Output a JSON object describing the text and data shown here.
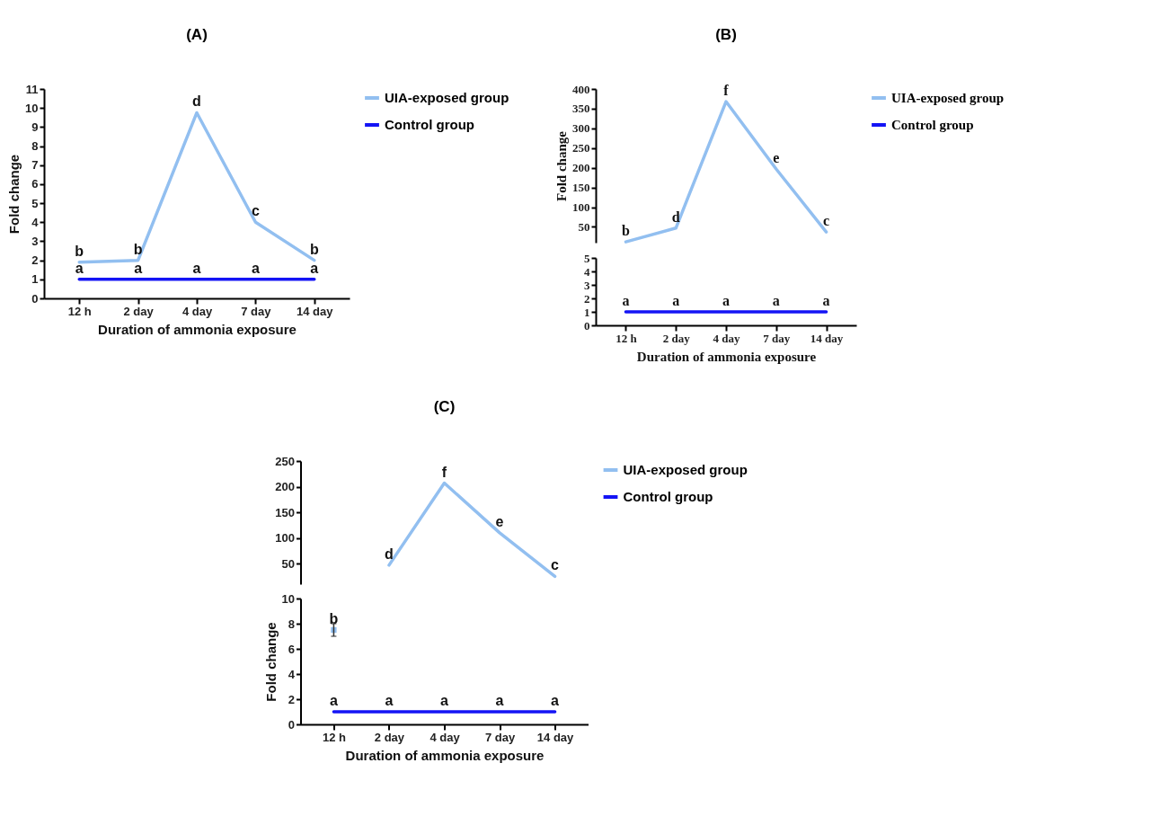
{
  "chart_data": [
    {
      "type": "line",
      "title": "(A)",
      "xlabel": "Duration of ammonia exposure",
      "ylabel": "Fold change",
      "categories": [
        "12 h",
        "2 day",
        "4 day",
        "7 day",
        "14 day"
      ],
      "ylim": [
        0,
        11
      ],
      "yticks": [
        0,
        1,
        2,
        3,
        4,
        5,
        6,
        7,
        8,
        9,
        10,
        11
      ],
      "legend": "right",
      "series": [
        {
          "name": "UIA-exposed group",
          "color": "#92bff0",
          "values": [
            1.9,
            2.0,
            9.75,
            4.0,
            2.0
          ]
        },
        {
          "name": "Control group",
          "color": "#1414f5",
          "values": [
            1,
            1,
            1,
            1,
            1
          ]
        }
      ],
      "annotations": [
        {
          "text": "b",
          "x": "12 h",
          "y": 1.9
        },
        {
          "text": "b",
          "x": "2 day",
          "y": 2.0
        },
        {
          "text": "d",
          "x": "4 day",
          "y": 9.75
        },
        {
          "text": "c",
          "x": "7 day",
          "y": 4.0
        },
        {
          "text": "b",
          "x": "14 day",
          "y": 2.0
        },
        {
          "text": "a",
          "x": "12 h",
          "y": 1
        },
        {
          "text": "a",
          "x": "2 day",
          "y": 1
        },
        {
          "text": "a",
          "x": "4 day",
          "y": 1
        },
        {
          "text": "a",
          "x": "7 day",
          "y": 1
        },
        {
          "text": "a",
          "x": "14 day",
          "y": 1
        }
      ]
    },
    {
      "type": "line",
      "title": "(B)",
      "ylabel": "Fold change",
      "categories": [
        "12 h",
        "2 day",
        "4 day",
        "7 day",
        "14 day"
      ],
      "ylim": [
        10,
        400
      ],
      "yticks": [
        50,
        100,
        150,
        200,
        250,
        300,
        350,
        400
      ],
      "legend": "right",
      "tick_labels": "y",
      "series": [
        {
          "name": "UIA-exposed group",
          "color": "#92bff0",
          "values": [
            12,
            47,
            368,
            197,
            37
          ]
        },
        {
          "name": "Control group",
          "color": "#1414f5",
          "values": [
            null,
            null,
            null,
            null,
            null
          ]
        }
      ],
      "annotations": [
        {
          "text": "b",
          "x": "12 h",
          "y": 12
        },
        {
          "text": "d",
          "x": "2 day",
          "y": 47
        },
        {
          "text": "f",
          "x": "4 day",
          "y": 368
        },
        {
          "text": "e",
          "x": "7 day",
          "y": 197
        },
        {
          "text": "c",
          "x": "14 day",
          "y": 37
        }
      ]
    },
    {
      "type": "line",
      "xlabel": "Duration of ammonia exposure",
      "categories": [
        "12 h",
        "2 day",
        "4 day",
        "7 day",
        "14 day"
      ],
      "ylim": [
        0,
        5
      ],
      "yticks": [
        0,
        1,
        2,
        3,
        4,
        5
      ],
      "series": [
        {
          "color": "#1414f5",
          "values": [
            1,
            1,
            1,
            1,
            1
          ]
        }
      ],
      "annotations": [
        {
          "text": "a",
          "x": "12 h",
          "y": 1
        },
        {
          "text": "a",
          "x": "2 day",
          "y": 1
        },
        {
          "text": "a",
          "x": "4 day",
          "y": 1
        },
        {
          "text": "a",
          "x": "7 day",
          "y": 1
        },
        {
          "text": "a",
          "x": "14 day",
          "y": 1
        }
      ]
    },
    {
      "type": "line",
      "title": "(C)",
      "categories": [
        "12 h",
        "2 day",
        "4 day",
        "7 day",
        "14 day"
      ],
      "ylim": [
        10,
        250
      ],
      "yticks": [
        50,
        100,
        150,
        200,
        250
      ],
      "legend": "right",
      "tick_labels": "y",
      "series": [
        {
          "name": "UIA-exposed group",
          "color": "#92bff0",
          "values": [
            null,
            47,
            207,
            110,
            25
          ]
        },
        {
          "name": "Control group",
          "color": "#1414f5",
          "values": [
            null,
            null,
            null,
            null,
            null
          ]
        }
      ],
      "annotations": [
        {
          "text": "d",
          "x": "2 day",
          "y": 47
        },
        {
          "text": "f",
          "x": "4 day",
          "y": 207
        },
        {
          "text": "e",
          "x": "7 day",
          "y": 110
        },
        {
          "text": "c",
          "x": "14 day",
          "y": 25
        }
      ]
    },
    {
      "type": "line",
      "xlabel": "Duration of ammonia exposure",
      "ylabel": "Fold change",
      "categories": [
        "12 h",
        "2 day",
        "4 day",
        "7 day",
        "14 day"
      ],
      "ylim": [
        0,
        10
      ],
      "yticks": [
        0,
        2,
        4,
        6,
        8,
        10
      ],
      "series": [
        {
          "color": "#92bff0",
          "marker": "square",
          "values": [
            7.5,
            null,
            null,
            null,
            null
          ],
          "errors": [
            [
              7.0,
              8.0
            ],
            null,
            null,
            null,
            null
          ]
        },
        {
          "color": "#1414f5",
          "values": [
            1,
            1,
            1,
            1,
            1
          ]
        }
      ],
      "annotations": [
        {
          "text": "b",
          "x": "12 h",
          "y": 7.5
        },
        {
          "text": "a",
          "x": "12 h",
          "y": 1
        },
        {
          "text": "a",
          "x": "2 day",
          "y": 1
        },
        {
          "text": "a",
          "x": "4 day",
          "y": 1
        },
        {
          "text": "a",
          "x": "7 day",
          "y": 1
        },
        {
          "text": "a",
          "x": "14 day",
          "y": 1
        }
      ]
    }
  ]
}
